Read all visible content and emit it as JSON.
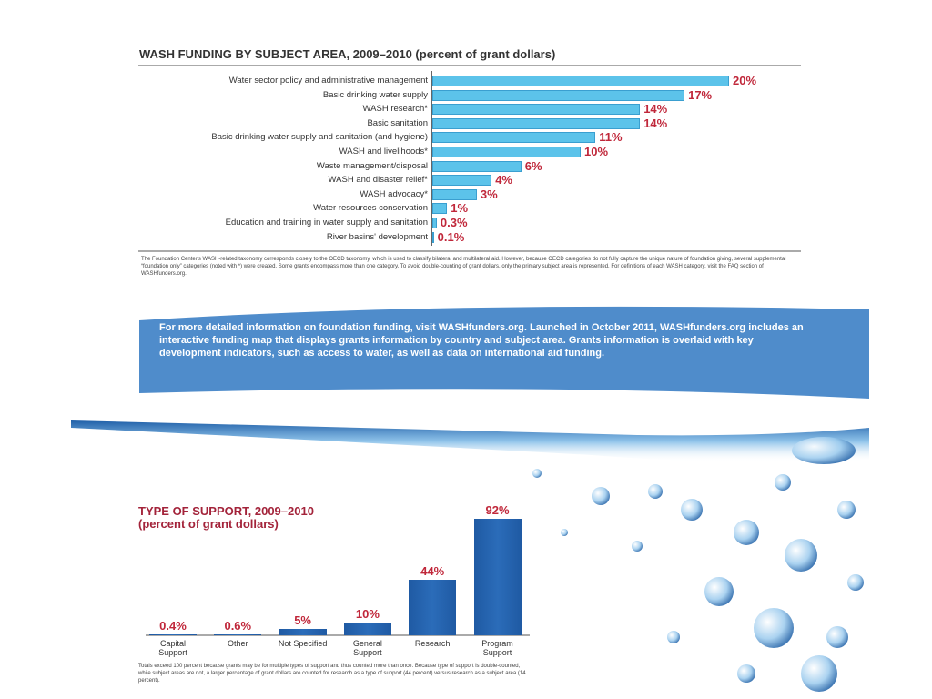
{
  "chart_data": [
    {
      "type": "bar",
      "orientation": "horizontal",
      "title": "WASH FUNDING BY SUBJECT AREA, 2009–2010 (percent of grant dollars)",
      "categories": [
        "Water sector policy and administrative management",
        "Basic drinking water supply",
        "WASH research*",
        "Basic sanitation",
        "Basic drinking water supply and sanitation (and hygiene)",
        "WASH and livelihoods*",
        "Waste management/disposal",
        "WASH and disaster relief*",
        "WASH advocacy*",
        "Water resources conservation",
        "Education and training in water supply and sanitation",
        "River basins' development"
      ],
      "values": [
        20,
        17,
        14,
        14,
        11,
        10,
        6,
        4,
        3,
        1,
        0.3,
        0.1
      ],
      "value_labels": [
        "20%",
        "17%",
        "14%",
        "14%",
        "11%",
        "10%",
        "6%",
        "4%",
        "3%",
        "1%",
        "0.3%",
        "0.1%"
      ],
      "color": "#5cc3ea",
      "note": "The Foundation Center's WASH-related taxonomy corresponds closely to the OECD taxonomy, which is used to classify bilateral and multilateral aid. However, because OECD categories do not fully capture the unique nature of foundation giving, several supplemental “foundation only” categories (noted with *) were created. Some grants encompass more than one category. To avoid double-counting of grant dollars, only the primary subject area is represented. For definitions of each WASH category, visit the FAQ section of WASHfunders.org."
    },
    {
      "type": "bar",
      "orientation": "vertical",
      "title": "TYPE OF SUPPORT, 2009–2010",
      "subtitle": "(percent of grant dollars)",
      "categories": [
        "Capital Support",
        "Other",
        "Not Specified",
        "General Support",
        "Research",
        "Program Support"
      ],
      "values": [
        0.4,
        0.6,
        5,
        10,
        44,
        92
      ],
      "value_labels": [
        "0.4%",
        "0.6%",
        "5%",
        "10%",
        "44%",
        "92%"
      ],
      "color": "#2b6cb9",
      "note": "Totals exceed 100 percent because grants may be for multiple types of support and thus counted more than once. Because type of support is double-counted, while subject areas are not, a larger percentage of grant dollars are counted for research as a type of support (44 percent) versus research as a subject area (14 percent)."
    }
  ],
  "banner": "For more detailed information on foundation funding, visit WASHfunders.org. Launched in October 2011, WASHfunders.org includes an interactive funding map that displays grants information by country and subject area. Grants information is overlaid with key development indicators, such as access to water, as well as data on international aid funding."
}
